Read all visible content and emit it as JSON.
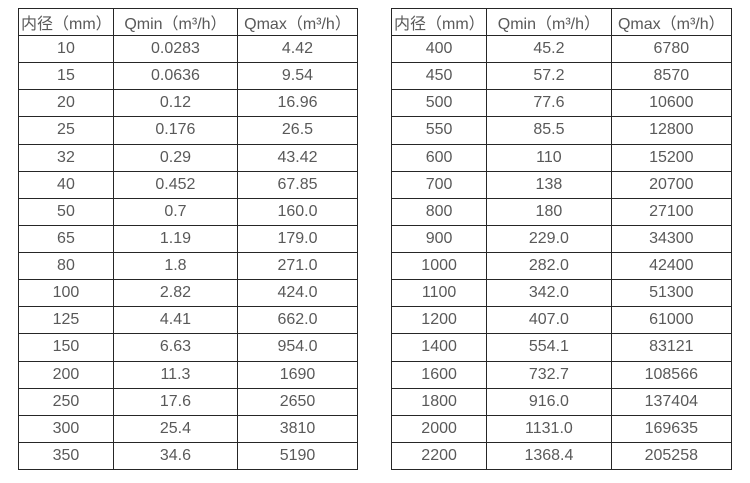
{
  "page": {
    "background_color": "#ffffff",
    "border_color": "#262626",
    "text_color": "#595959"
  },
  "tables": [
    {
      "name": "flow-range-table-small-diameters",
      "columns": [
        "内径（mm）",
        "Qmin（m³/h）",
        "Qmax（m³/h）"
      ],
      "rows": [
        [
          "10",
          "0.0283",
          "4.42"
        ],
        [
          "15",
          "0.0636",
          "9.54"
        ],
        [
          "20",
          "0.12",
          "16.96"
        ],
        [
          "25",
          "0.176",
          "26.5"
        ],
        [
          "32",
          "0.29",
          "43.42"
        ],
        [
          "40",
          "0.452",
          "67.85"
        ],
        [
          "50",
          "0.7",
          "160.0"
        ],
        [
          "65",
          "1.19",
          "179.0"
        ],
        [
          "80",
          "1.8",
          "271.0"
        ],
        [
          "100",
          "2.82",
          "424.0"
        ],
        [
          "125",
          "4.41",
          "662.0"
        ],
        [
          "150",
          "6.63",
          "954.0"
        ],
        [
          "200",
          "11.3",
          "1690"
        ],
        [
          "250",
          "17.6",
          "2650"
        ],
        [
          "300",
          "25.4",
          "3810"
        ],
        [
          "350",
          "34.6",
          "5190"
        ]
      ]
    },
    {
      "name": "flow-range-table-large-diameters",
      "columns": [
        "内径（mm）",
        "Qmin（m³/h）",
        "Qmax（m³/h）"
      ],
      "rows": [
        [
          "400",
          "45.2",
          "6780"
        ],
        [
          "450",
          "57.2",
          "8570"
        ],
        [
          "500",
          "77.6",
          "10600"
        ],
        [
          "550",
          "85.5",
          "12800"
        ],
        [
          "600",
          "110",
          "15200"
        ],
        [
          "700",
          "138",
          "20700"
        ],
        [
          "800",
          "180",
          "27100"
        ],
        [
          "900",
          "229.0",
          "34300"
        ],
        [
          "1000",
          "282.0",
          "42400"
        ],
        [
          "1100",
          "342.0",
          "51300"
        ],
        [
          "1200",
          "407.0",
          "61000"
        ],
        [
          "1400",
          "554.1",
          "83121"
        ],
        [
          "1600",
          "732.7",
          "108566"
        ],
        [
          "1800",
          "916.0",
          "137404"
        ],
        [
          "2000",
          "1131.0",
          "169635"
        ],
        [
          "2200",
          "1368.4",
          "205258"
        ]
      ]
    }
  ]
}
